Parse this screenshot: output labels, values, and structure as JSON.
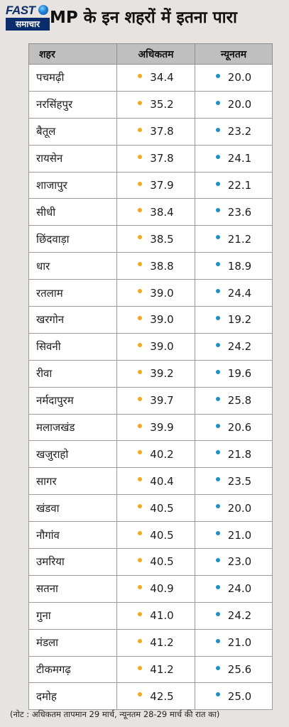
{
  "logo": {
    "top": "FAST",
    "bottom": "समाचार"
  },
  "headline": "MP के इन शहरों में इतना पारा",
  "colors": {
    "max_dot": "#f3a81d",
    "min_dot": "#1e8fc7",
    "logo_blue": "#0b2d6b"
  },
  "icons": {
    "max_dot": "orange-dot-icon",
    "min_dot": "blue-dot-icon",
    "logo": "globe-icon"
  },
  "table": {
    "headers": [
      "शहर",
      "अधिकतम",
      "न्यूनतम"
    ],
    "rows": [
      {
        "city": "पचमढ़ी",
        "max": "34.4",
        "min": "20.0"
      },
      {
        "city": "नरसिंहपुर",
        "max": "35.2",
        "min": "20.0"
      },
      {
        "city": "बैतूल",
        "max": "37.8",
        "min": "23.2"
      },
      {
        "city": "रायसेन",
        "max": "37.8",
        "min": "24.1"
      },
      {
        "city": "शाजापुर",
        "max": "37.9",
        "min": "22.1"
      },
      {
        "city": "सीधी",
        "max": "38.4",
        "min": "23.6"
      },
      {
        "city": "छिंदवाड़ा",
        "max": "38.5",
        "min": "21.2"
      },
      {
        "city": "धार",
        "max": "38.8",
        "min": "18.9"
      },
      {
        "city": "रतलाम",
        "max": "39.0",
        "min": "24.4"
      },
      {
        "city": "खरगोन",
        "max": "39.0",
        "min": "19.2"
      },
      {
        "city": "सिवनी",
        "max": "39.0",
        "min": "24.2"
      },
      {
        "city": "रीवा",
        "max": "39.2",
        "min": "19.6"
      },
      {
        "city": "नर्मदापुरम",
        "max": "39.7",
        "min": "25.8"
      },
      {
        "city": "मलाजखंड",
        "max": "39.9",
        "min": "20.6"
      },
      {
        "city": "खजुराहो",
        "max": "40.2",
        "min": "21.8"
      },
      {
        "city": "सागर",
        "max": "40.4",
        "min": "23.5"
      },
      {
        "city": "खंडवा",
        "max": "40.5",
        "min": "20.0"
      },
      {
        "city": "नौगांव",
        "max": "40.5",
        "min": "21.0"
      },
      {
        "city": "उमरिया",
        "max": "40.5",
        "min": "23.0"
      },
      {
        "city": "सतना",
        "max": "40.9",
        "min": "24.0"
      },
      {
        "city": "गुना",
        "max": "41.0",
        "min": "24.2"
      },
      {
        "city": "मंडला",
        "max": "41.2",
        "min": "21.0"
      },
      {
        "city": "टीकमगढ़",
        "max": "41.2",
        "min": "25.6"
      },
      {
        "city": "दमोह",
        "max": "42.5",
        "min": "25.0"
      }
    ]
  },
  "note": "(नोट : अधिकतम तापमान 29 मार्च, न्यूनतम 28-29 मार्च की रात का)"
}
